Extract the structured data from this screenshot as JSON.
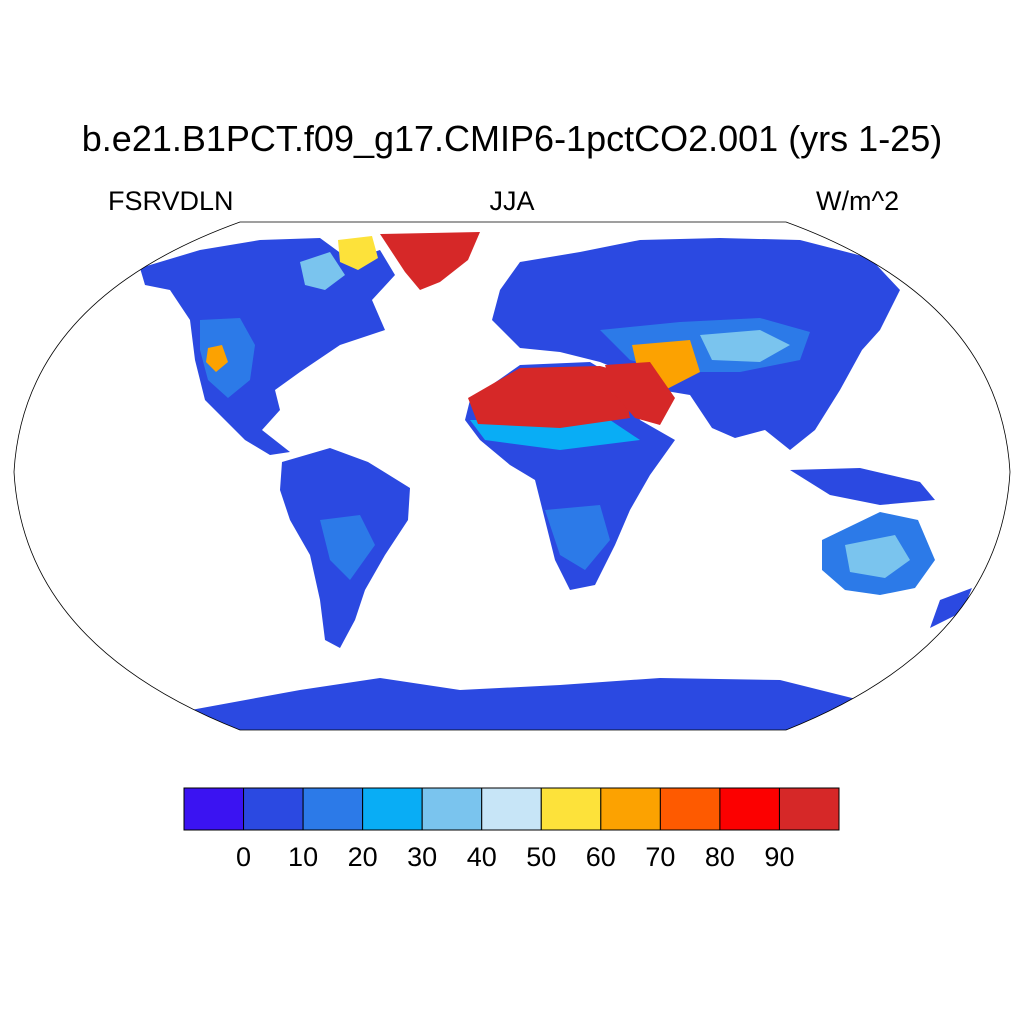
{
  "title": "b.e21.B1PCT.f09_g17.CMIP6-1pctCO2.001 (yrs 1-25)",
  "left_string": "FSRVDLN",
  "center_string": "JJA",
  "right_string": "W/m^2",
  "projection": "Robinson",
  "colorbar": {
    "colors": [
      "#3b13f2",
      "#2b49e1",
      "#2c7ae8",
      "#09adf5",
      "#7ac4ee",
      "#c7e5f7",
      "#fde23a",
      "#fca201",
      "#fe5a00",
      "#fc0000",
      "#d62828"
    ],
    "labels": [
      "0",
      "10",
      "20",
      "30",
      "40",
      "50",
      "60",
      "70",
      "80",
      "90"
    ]
  },
  "land_palette": {
    "continent": "#2b49e1",
    "moderate": "#2c7ae8",
    "light": "#09adf5",
    "bright": "#7ac4ee",
    "hot_yellow": "#fde23a",
    "hot_orange": "#fca201",
    "desert_red": "#d62828",
    "ice": "#d62828"
  }
}
